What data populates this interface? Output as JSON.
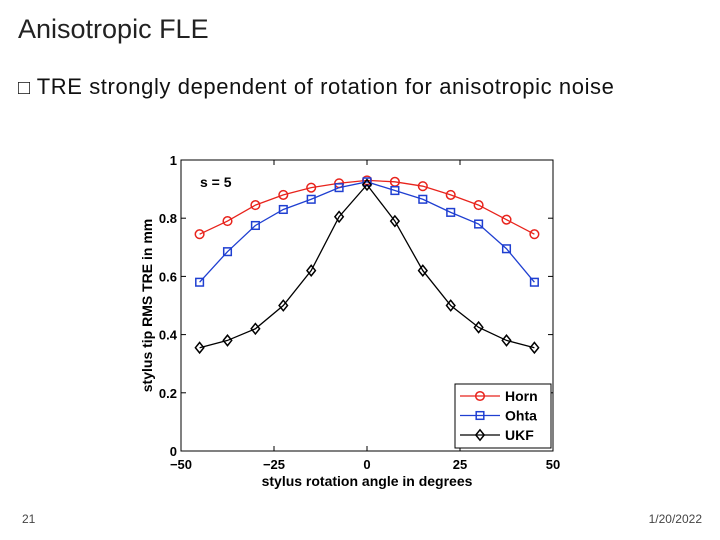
{
  "slide": {
    "title": "Anisotropic FLE",
    "bullet_marker": "□",
    "bullet_text": "TRE strongly dependent of rotation for anisotropic noise",
    "slide_number": "21",
    "date": "1/20/2022"
  },
  "chart_data": {
    "type": "line",
    "annotation": "s = 5",
    "xlabel": "stylus rotation angle in degrees",
    "ylabel": "stylus tip RMS TRE in mm",
    "xlim": [
      -50,
      50
    ],
    "ylim": [
      0,
      1
    ],
    "xticks": [
      -50,
      -25,
      0,
      25,
      50
    ],
    "yticks": [
      0,
      0.2,
      0.4,
      0.6,
      0.8,
      1
    ],
    "xtick_labels": [
      "−50",
      "−25",
      "0",
      "25",
      "50"
    ],
    "ytick_labels": [
      "0",
      "0.2",
      "0.4",
      "0.6",
      "0.8",
      "1"
    ],
    "grid": false,
    "legend_position": "bottom-right",
    "x": [
      -45,
      -37.5,
      -30,
      -22.5,
      -15,
      -7.5,
      0,
      7.5,
      15,
      22.5,
      30,
      37.5,
      45
    ],
    "series": [
      {
        "name": "Horn",
        "color": "#e8231c",
        "marker": "circle",
        "values": [
          0.745,
          0.79,
          0.845,
          0.88,
          0.905,
          0.92,
          0.93,
          0.925,
          0.91,
          0.88,
          0.845,
          0.795,
          0.745
        ]
      },
      {
        "name": "Ohta",
        "color": "#1f3fd1",
        "marker": "square",
        "values": [
          0.58,
          0.685,
          0.775,
          0.83,
          0.865,
          0.905,
          0.925,
          0.895,
          0.865,
          0.82,
          0.78,
          0.695,
          0.58
        ]
      },
      {
        "name": "UKF",
        "color": "#000000",
        "marker": "diamond",
        "values": [
          0.355,
          0.38,
          0.42,
          0.5,
          0.62,
          0.805,
          0.915,
          0.79,
          0.62,
          0.5,
          0.425,
          0.38,
          0.355
        ]
      }
    ]
  }
}
